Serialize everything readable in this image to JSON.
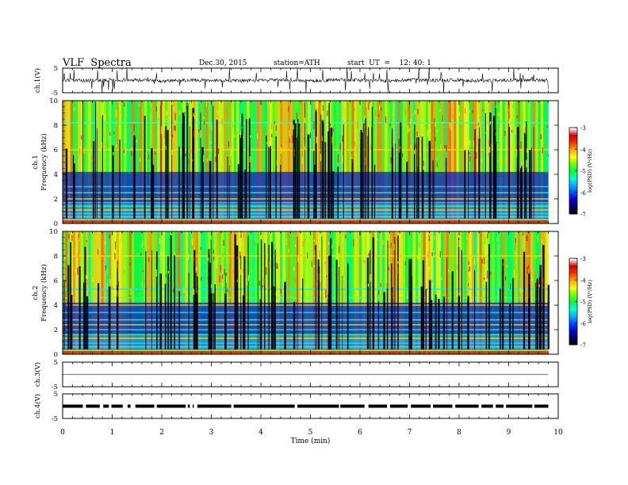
{
  "header": {
    "title": "VLF  Spectra",
    "date": "Dec.30, 2015",
    "station": "station=ATH",
    "start": "start  UT  =    12: 40: 1"
  },
  "colors": {
    "spectrogram_scale": [
      "#000000",
      "#000066",
      "#0000cc",
      "#0044ff",
      "#00aaff",
      "#00ffcc",
      "#00ff44",
      "#66ff00",
      "#ffff00",
      "#ffaa00",
      "#ff3300",
      "#cc0000",
      "#ffffff"
    ],
    "trace": "#000000",
    "axis": "#000000"
  },
  "chart_data": [
    {
      "type": "line",
      "panel": "ch1-waveform",
      "ylabel": "ch.1(V)",
      "ylim": [
        -5,
        5
      ],
      "yticks": [
        "5",
        "-5"
      ],
      "x": [
        0,
        0.5,
        1,
        1.5,
        2,
        2.5,
        3,
        3.5,
        4,
        4.5,
        5,
        5.5,
        6,
        6.5,
        7,
        7.5,
        8,
        8.5,
        9,
        9.5,
        9.8
      ],
      "values": [
        0.2,
        -0.1,
        0.3,
        0.1,
        -0.2,
        0.2,
        0.1,
        -0.2,
        0.0,
        0.3,
        -0.1,
        0.2,
        0.1,
        -0.1,
        0.2,
        0.0,
        0.1,
        -0.2,
        0.2,
        0.1,
        0.0
      ]
    },
    {
      "type": "heatmap",
      "panel": "ch1-spectrogram",
      "ylabel": "ch.1\nFrequency  (kHz)",
      "ylim": [
        0,
        10
      ],
      "yticks": [
        "0",
        "2",
        "4",
        "6",
        "8",
        "10"
      ],
      "colorbar": {
        "label": "log(PSD) (V²/Hz)",
        "ticks": [
          "-3",
          "-4",
          "-5",
          "-6",
          "-7"
        ],
        "range": [
          -7,
          -3
        ]
      }
    },
    {
      "type": "heatmap",
      "panel": "ch2-spectrogram",
      "ylabel": "ch.2\nFrequency  (kHz)",
      "ylim": [
        0,
        10
      ],
      "yticks": [
        "0",
        "2",
        "4",
        "6",
        "8",
        "10"
      ],
      "colorbar": {
        "label": "log(PSD) (V²/Hz)",
        "ticks": [
          "-3",
          "-4",
          "-5",
          "-6",
          "-7"
        ],
        "range": [
          -7,
          -3
        ]
      }
    },
    {
      "type": "line",
      "panel": "ch3-waveform",
      "ylabel": "ch.3(V)",
      "ylim": [
        -5,
        5
      ],
      "yticks": [
        "5",
        "-5"
      ],
      "x": [
        0,
        9.8
      ],
      "values": [
        0,
        0
      ]
    },
    {
      "type": "line",
      "panel": "ch4-waveform",
      "ylabel": "ch.4(V)",
      "ylim": [
        -5,
        5
      ],
      "yticks": [
        "5",
        "-5"
      ],
      "x": [
        0,
        9.8
      ],
      "values": [
        0,
        0
      ]
    }
  ],
  "xaxis": {
    "label": "Time  (min)",
    "ticks": [
      "0",
      "1",
      "2",
      "3",
      "4",
      "5",
      "6",
      "7",
      "8",
      "9",
      "10"
    ],
    "range": [
      0,
      10
    ]
  }
}
